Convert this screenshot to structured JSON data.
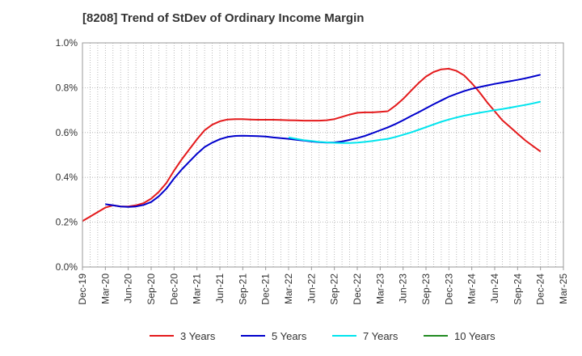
{
  "chart_data": {
    "type": "line",
    "title": "[8208]  Trend of StDev of Ordinary Income Margin",
    "xlabel": "",
    "ylabel": "",
    "x_ticks": [
      "Dec-19",
      "Mar-20",
      "Jun-20",
      "Sep-20",
      "Dec-20",
      "Mar-21",
      "Jun-21",
      "Sep-21",
      "Dec-21",
      "Mar-22",
      "Jun-22",
      "Sep-22",
      "Dec-22",
      "Mar-23",
      "Jun-23",
      "Sep-23",
      "Dec-23",
      "Mar-24",
      "Jun-24",
      "Sep-24",
      "Dec-24",
      "Mar-25"
    ],
    "y_ticks": [
      "0.0%",
      "0.2%",
      "0.4%",
      "0.6%",
      "0.8%",
      "1.0%"
    ],
    "ylim": [
      0,
      1.0
    ],
    "y_unit": "%",
    "grid": true,
    "legend_position": "bottom",
    "series": [
      {
        "name": "3 Years",
        "color": "#e41a1c",
        "x": [
          "Dec-19",
          "Jan-20",
          "Feb-20",
          "Mar-20",
          "Apr-20",
          "May-20",
          "Jun-20",
          "Jul-20",
          "Aug-20",
          "Sep-20",
          "Oct-20",
          "Nov-20",
          "Dec-20",
          "Jan-21",
          "Feb-21",
          "Mar-21",
          "Apr-21",
          "May-21",
          "Jun-21",
          "Jul-21",
          "Aug-21",
          "Sep-21",
          "Oct-21",
          "Nov-21",
          "Dec-21",
          "Jan-22",
          "Feb-22",
          "Mar-22",
          "Apr-22",
          "May-22",
          "Jun-22",
          "Jul-22",
          "Aug-22",
          "Sep-22",
          "Oct-22",
          "Nov-22",
          "Dec-22",
          "Jan-23",
          "Feb-23",
          "Mar-23",
          "Apr-23",
          "May-23",
          "Jun-23",
          "Jul-23",
          "Aug-23",
          "Sep-23",
          "Oct-23",
          "Nov-23",
          "Dec-23",
          "Jan-24",
          "Feb-24",
          "Mar-24",
          "Apr-24",
          "May-24",
          "Jun-24",
          "Jul-24",
          "Aug-24",
          "Sep-24",
          "Oct-24",
          "Nov-24",
          "Dec-24"
        ],
        "values": [
          0.205,
          0.225,
          0.245,
          0.265,
          0.275,
          0.27,
          0.27,
          0.275,
          0.285,
          0.305,
          0.335,
          0.375,
          0.43,
          0.48,
          0.525,
          0.57,
          0.61,
          0.635,
          0.65,
          0.658,
          0.66,
          0.66,
          0.658,
          0.657,
          0.657,
          0.657,
          0.656,
          0.655,
          0.654,
          0.653,
          0.653,
          0.653,
          0.655,
          0.66,
          0.67,
          0.68,
          0.688,
          0.69,
          0.69,
          0.692,
          0.695,
          0.72,
          0.75,
          0.785,
          0.82,
          0.85,
          0.87,
          0.882,
          0.885,
          0.875,
          0.855,
          0.82,
          0.78,
          0.735,
          0.695,
          0.655,
          0.625,
          0.595,
          0.565,
          0.54,
          0.515
        ]
      },
      {
        "name": "5 Years",
        "color": "#0000cc",
        "x": [
          "Mar-20",
          "Apr-20",
          "May-20",
          "Jun-20",
          "Jul-20",
          "Aug-20",
          "Sep-20",
          "Oct-20",
          "Nov-20",
          "Dec-20",
          "Jan-21",
          "Feb-21",
          "Mar-21",
          "Apr-21",
          "May-21",
          "Jun-21",
          "Jul-21",
          "Aug-21",
          "Sep-21",
          "Oct-21",
          "Nov-21",
          "Dec-21",
          "Jan-22",
          "Feb-22",
          "Mar-22",
          "Apr-22",
          "May-22",
          "Jun-22",
          "Jul-22",
          "Aug-22",
          "Sep-22",
          "Oct-22",
          "Nov-22",
          "Dec-22",
          "Jan-23",
          "Feb-23",
          "Mar-23",
          "Apr-23",
          "May-23",
          "Jun-23",
          "Jul-23",
          "Aug-23",
          "Sep-23",
          "Oct-23",
          "Nov-23",
          "Dec-23",
          "Jan-24",
          "Feb-24",
          "Mar-24",
          "Apr-24",
          "May-24",
          "Jun-24",
          "Jul-24",
          "Aug-24",
          "Sep-24",
          "Oct-24",
          "Nov-24",
          "Dec-24"
        ],
        "values": [
          0.28,
          0.275,
          0.27,
          0.268,
          0.27,
          0.277,
          0.29,
          0.315,
          0.35,
          0.395,
          0.435,
          0.47,
          0.505,
          0.535,
          0.555,
          0.57,
          0.58,
          0.585,
          0.586,
          0.585,
          0.584,
          0.582,
          0.578,
          0.575,
          0.572,
          0.568,
          0.564,
          0.56,
          0.557,
          0.555,
          0.556,
          0.56,
          0.567,
          0.575,
          0.585,
          0.597,
          0.61,
          0.623,
          0.638,
          0.655,
          0.673,
          0.69,
          0.708,
          0.726,
          0.743,
          0.76,
          0.773,
          0.785,
          0.795,
          0.803,
          0.81,
          0.817,
          0.823,
          0.829,
          0.835,
          0.842,
          0.85,
          0.858
        ]
      },
      {
        "name": "7 Years",
        "color": "#00e5ee",
        "x": [
          "Mar-22",
          "Apr-22",
          "May-22",
          "Jun-22",
          "Jul-22",
          "Aug-22",
          "Sep-22",
          "Oct-22",
          "Nov-22",
          "Dec-22",
          "Jan-23",
          "Feb-23",
          "Mar-23",
          "Apr-23",
          "May-23",
          "Jun-23",
          "Jul-23",
          "Aug-23",
          "Sep-23",
          "Oct-23",
          "Nov-23",
          "Dec-23",
          "Jan-24",
          "Feb-24",
          "Mar-24",
          "Apr-24",
          "May-24",
          "Jun-24",
          "Jul-24",
          "Aug-24",
          "Sep-24",
          "Oct-24",
          "Nov-24",
          "Dec-24"
        ],
        "values": [
          0.578,
          0.572,
          0.566,
          0.562,
          0.558,
          0.556,
          0.554,
          0.553,
          0.553,
          0.555,
          0.558,
          0.562,
          0.567,
          0.572,
          0.58,
          0.59,
          0.6,
          0.612,
          0.624,
          0.636,
          0.648,
          0.658,
          0.667,
          0.675,
          0.682,
          0.688,
          0.694,
          0.7,
          0.705,
          0.711,
          0.717,
          0.723,
          0.73,
          0.738
        ]
      },
      {
        "name": "10 Years",
        "color": "#228b22",
        "x": [],
        "values": []
      }
    ]
  }
}
